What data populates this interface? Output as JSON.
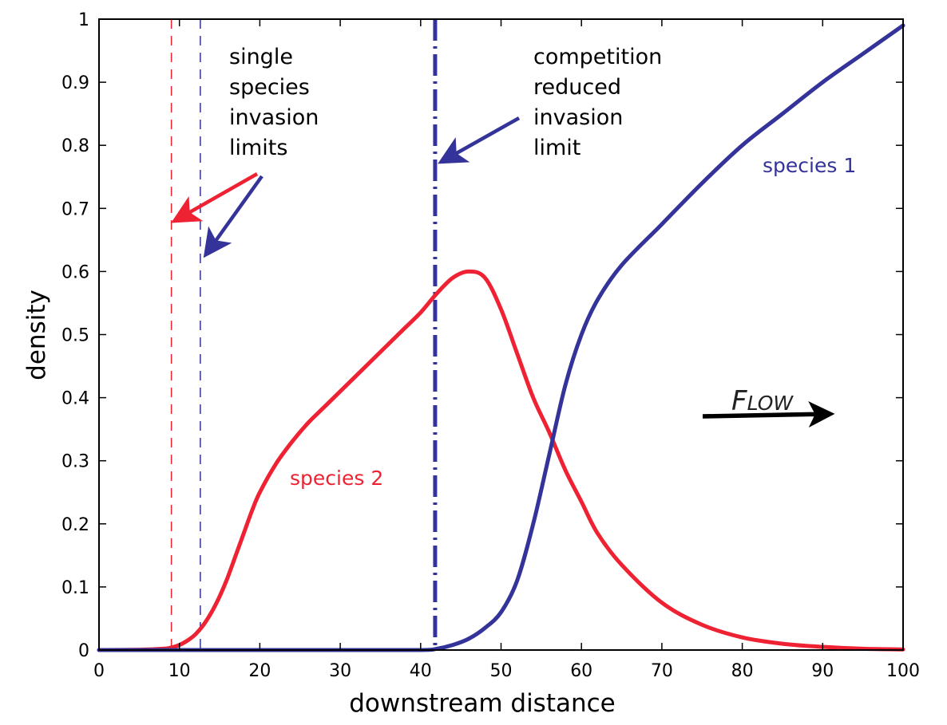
{
  "chart_data": {
    "type": "line",
    "title": "",
    "xlabel": "downstream distance",
    "ylabel": "density",
    "xlim": [
      0,
      100
    ],
    "ylim": [
      0,
      1
    ],
    "grid": false,
    "xticks": [
      0,
      10,
      20,
      30,
      40,
      50,
      60,
      70,
      80,
      90,
      100
    ],
    "yticks": [
      0,
      0.1,
      0.2,
      0.3,
      0.4,
      0.5,
      0.6,
      0.7,
      0.8,
      0.9,
      1
    ],
    "ytick_labels": [
      "0",
      "0.1",
      "0.2",
      "0.3",
      "0.4",
      "0.5",
      "0.6",
      "0.7",
      "0.8",
      "0.9",
      "1"
    ],
    "series": [
      {
        "name": "species 1",
        "color": "#333399",
        "x": [
          0,
          10,
          20,
          30,
          40,
          42,
          44,
          46,
          48,
          50,
          52,
          54,
          56,
          58,
          60,
          62,
          65,
          70,
          75,
          80,
          85,
          90,
          95,
          100
        ],
        "values": [
          0,
          0,
          0,
          0,
          0,
          0.002,
          0.008,
          0.018,
          0.035,
          0.06,
          0.11,
          0.2,
          0.31,
          0.42,
          0.5,
          0.555,
          0.61,
          0.675,
          0.74,
          0.8,
          0.85,
          0.9,
          0.945,
          0.99
        ]
      },
      {
        "name": "species 2",
        "color": "#ee2233",
        "x": [
          0,
          5,
          8,
          9,
          10,
          11,
          12,
          13,
          14,
          15,
          16,
          17,
          18,
          19,
          20,
          22,
          24,
          26,
          28,
          30,
          32,
          34,
          36,
          38,
          40,
          42,
          44,
          46,
          48,
          50,
          52,
          54,
          56,
          58,
          60,
          62,
          65,
          70,
          75,
          80,
          85,
          90,
          95,
          100
        ],
        "values": [
          0,
          0.0005,
          0.002,
          0.004,
          0.008,
          0.015,
          0.025,
          0.04,
          0.06,
          0.085,
          0.115,
          0.15,
          0.185,
          0.22,
          0.25,
          0.295,
          0.33,
          0.36,
          0.385,
          0.41,
          0.435,
          0.46,
          0.485,
          0.51,
          0.535,
          0.565,
          0.59,
          0.6,
          0.59,
          0.54,
          0.47,
          0.4,
          0.345,
          0.285,
          0.235,
          0.185,
          0.135,
          0.075,
          0.04,
          0.02,
          0.01,
          0.005,
          0.002,
          0.001
        ]
      }
    ],
    "vertical_lines": [
      {
        "name": "species 2 single-species invasion limit",
        "x": 9,
        "color": "#ee2233",
        "style": "dashed"
      },
      {
        "name": "species 1 single-species invasion limit",
        "x": 12.6,
        "color": "#333399",
        "style": "dashed"
      },
      {
        "name": "competition reduced invasion limit",
        "x": 41.8,
        "color": "#333399",
        "style": "dash-dot"
      }
    ],
    "annotations": [
      {
        "text": "single species invasion limits",
        "lines": [
          "single",
          "species",
          "invasion",
          "limits"
        ],
        "color": "#000000"
      },
      {
        "text": "competition reduced invasion limit",
        "lines": [
          "competition",
          "reduced",
          "invasion",
          "limit"
        ],
        "color": "#000000"
      },
      {
        "text": "species 1",
        "color": "#333399"
      },
      {
        "text": "species 2",
        "color": "#ee2233"
      },
      {
        "text": "FLOW",
        "color": "#000000",
        "arrow": "right"
      }
    ]
  },
  "labels": {
    "xlabel": "downstream distance",
    "ylabel": "density",
    "species1": "species 1",
    "species2": "species 2",
    "flow_F": "F",
    "flow_rest": "LOW",
    "single_1": "single",
    "single_2": "species",
    "single_3": "invasion",
    "single_4": "limits",
    "comp_1": "competition",
    "comp_2": "reduced",
    "comp_3": "invasion",
    "comp_4": "limit"
  },
  "colors": {
    "species1": "#333399",
    "species2": "#ee2233",
    "axis": "#000000"
  }
}
